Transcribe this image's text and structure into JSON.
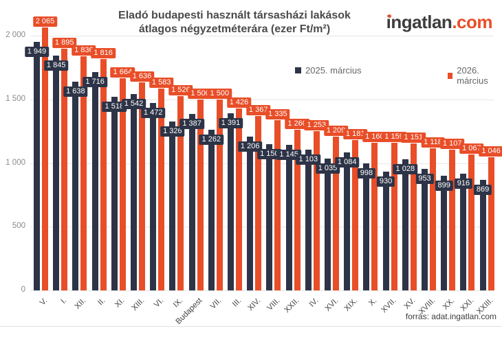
{
  "header": {
    "title_line1": "Eladó budapesti használt társasházi lakások",
    "title_line2": "átlagos négyzetméterára (ezer Ft/m²)",
    "logo_text": "ingatlan",
    "logo_suffix": ".com",
    "logo_accent_color": "#e84e28",
    "logo_text_color": "#3d3d3d"
  },
  "footer": {
    "source": "forrás: adat.ingatlan.com"
  },
  "chart_data": {
    "type": "bar",
    "title": "Eladó budapesti használt társasházi lakások átlagos négyzetméterára (ezer Ft/m²)",
    "categories": [
      "V.",
      "I.",
      "XII.",
      "II.",
      "XI.",
      "XIII.",
      "VI.",
      "IX.",
      "Budapest",
      "VII.",
      "III.",
      "XIV.",
      "VIII.",
      "XXII.",
      "IV.",
      "XVI.",
      "XIX.",
      "X.",
      "XVII.",
      "XV.",
      "XVIII.",
      "XX.",
      "XXI.",
      "XXIII."
    ],
    "series": [
      {
        "name": "2025. március",
        "color": "#2d3447",
        "values": [
          1949,
          1845,
          1638,
          1716,
          1518,
          1542,
          1472,
          1326,
          1387,
          1262,
          1391,
          1206,
          1150,
          1145,
          1103,
          1035,
          1084,
          998,
          930,
          1028,
          953,
          899,
          916,
          869
        ]
      },
      {
        "name": "2026. március",
        "color": "#e84e28",
        "values": [
          2065,
          1895,
          1836,
          1816,
          1664,
          1636,
          1583,
          1526,
          1500,
          1500,
          1426,
          1367,
          1335,
          1260,
          1253,
          1209,
          1181,
          1160,
          1159,
          1151,
          1118,
          1107,
          1067,
          1046
        ]
      }
    ],
    "ylabel": "",
    "xlabel": "",
    "ylim": [
      0,
      2000
    ],
    "yticks": [
      0,
      500,
      1000,
      1500,
      2000
    ],
    "grid": true,
    "legend_position": "top-center",
    "data_labels": true,
    "thousands_separator": " "
  }
}
